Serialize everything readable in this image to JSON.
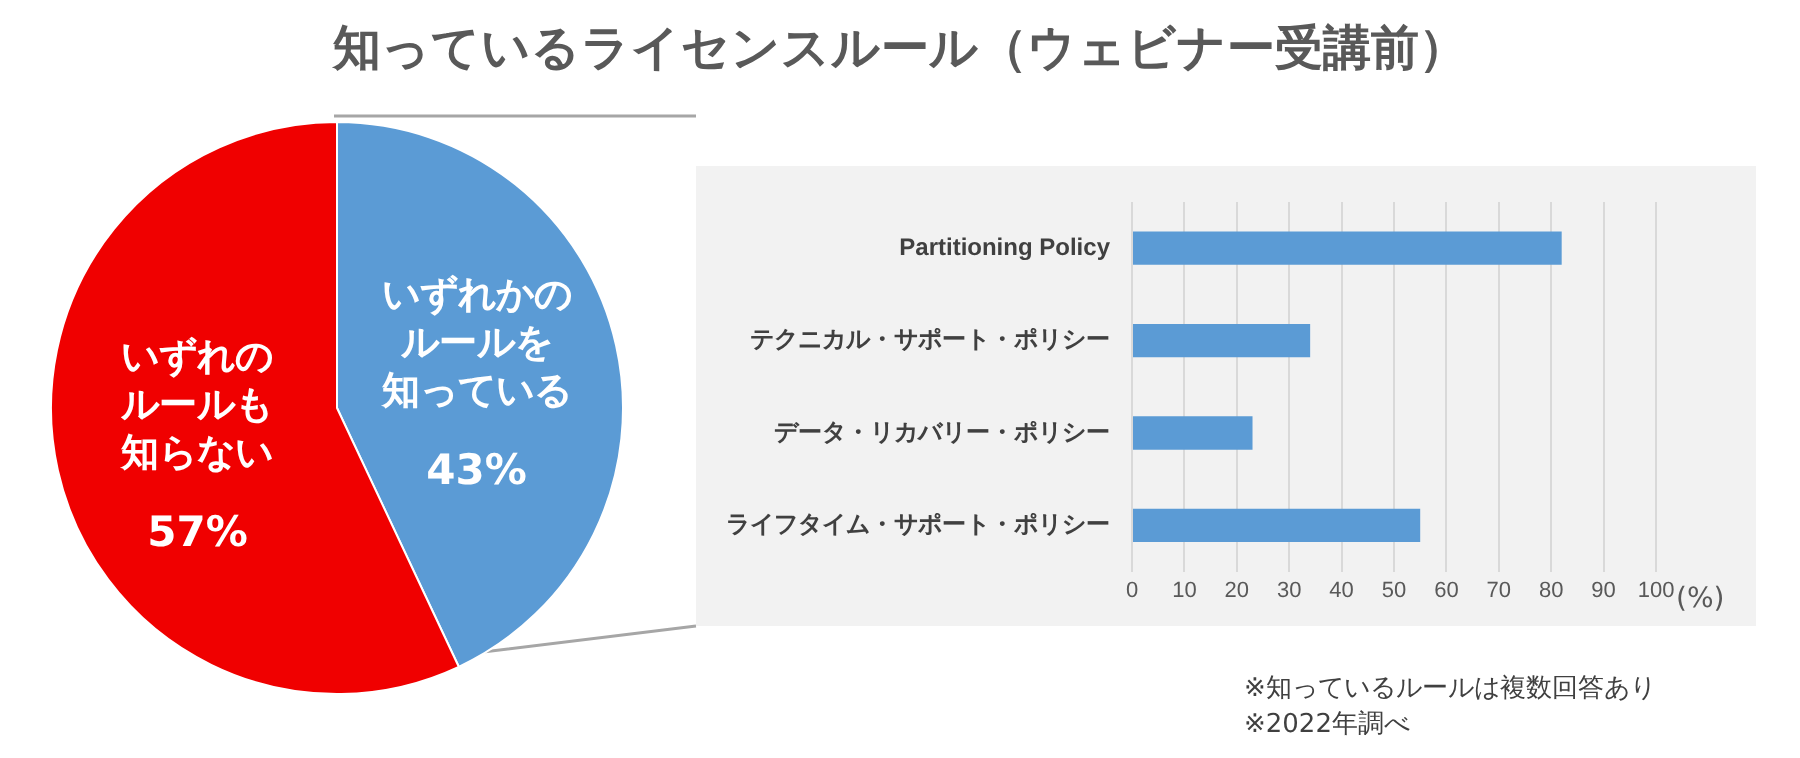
{
  "chart_data": [
    {
      "type": "pie",
      "title": "知っているライセンスルール（ウェビナー受講前）",
      "categories": [
        "いずれかのルールを知っている",
        "いずれのルールも知らない"
      ],
      "values": [
        43,
        57
      ],
      "colors": [
        "#5b9bd5",
        "#f00000"
      ],
      "value_labels": [
        "43%",
        "57%"
      ],
      "legend": false
    },
    {
      "type": "bar",
      "orientation": "horizontal",
      "categories": [
        "Partitioning Policy",
        "テクニカル・サポート・ポリシー",
        "データ・リカバリー・ポリシー",
        "ライフタイム・サポート・ポリシー"
      ],
      "values": [
        82,
        34,
        23,
        55
      ],
      "color": "#5b9bd5",
      "xlabel": "(%)",
      "xlim": [
        0,
        100
      ],
      "xticks": [
        0,
        10,
        20,
        30,
        40,
        50,
        60,
        70,
        80,
        90,
        100
      ],
      "grid": "x",
      "legend": false,
      "annotations": [
        "※知っているルールは複数回答あり",
        "※2022年調べ"
      ]
    }
  ]
}
